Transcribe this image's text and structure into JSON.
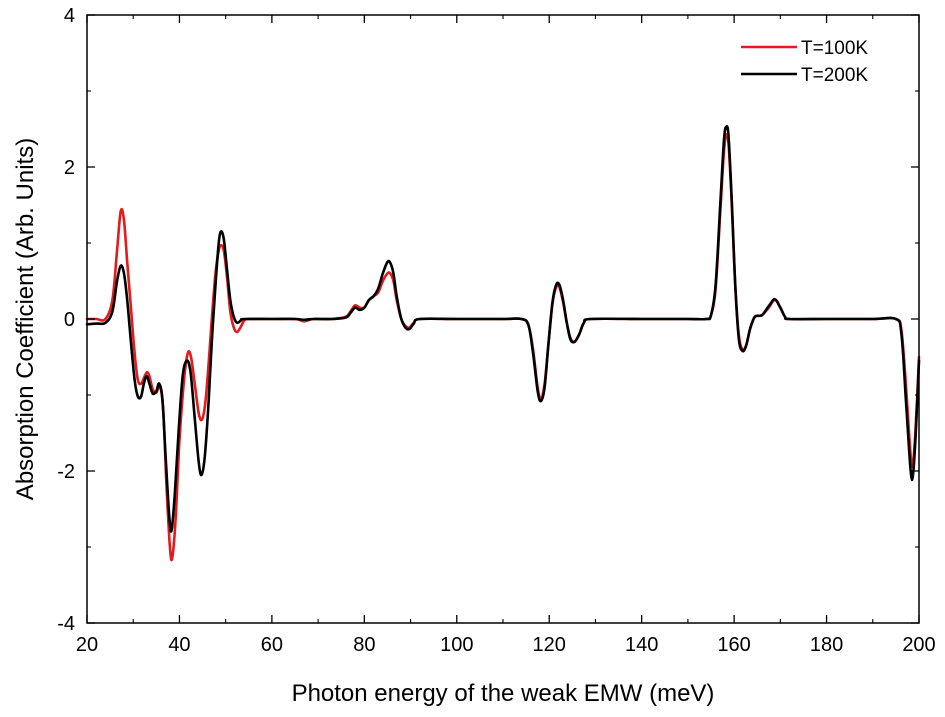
{
  "chart_data": {
    "type": "line",
    "xlabel": "Photon energy of the weak EMW (meV)",
    "ylabel": "Absorption Coefficient (Arb. Units)",
    "xlim": [
      20,
      200
    ],
    "ylim": [
      -4,
      4
    ],
    "x_ticks": [
      20,
      40,
      60,
      80,
      100,
      120,
      140,
      160,
      180,
      200
    ],
    "y_ticks": [
      -4,
      -2,
      0,
      2,
      4
    ],
    "grid": false,
    "legend_position": "top-right",
    "series": [
      {
        "name": "T=100K",
        "color": "#e41a1c",
        "points": [
          [
            20,
            0
          ],
          [
            22,
            0
          ],
          [
            24,
            0
          ],
          [
            25.5,
            0.25
          ],
          [
            26.5,
            0.9
          ],
          [
            27.3,
            1.42
          ],
          [
            28,
            1.3
          ],
          [
            28.7,
            0.75
          ],
          [
            29.5,
            0.15
          ],
          [
            30.3,
            -0.45
          ],
          [
            31,
            -0.8
          ],
          [
            31.7,
            -0.85
          ],
          [
            32.5,
            -0.75
          ],
          [
            33,
            -0.7
          ],
          [
            33.5,
            -0.75
          ],
          [
            34.2,
            -0.92
          ],
          [
            35,
            -0.97
          ],
          [
            35.8,
            -0.88
          ],
          [
            36.5,
            -1.2
          ],
          [
            37.2,
            -2.2
          ],
          [
            38,
            -3.05
          ],
          [
            38.5,
            -3.12
          ],
          [
            39.2,
            -2.6
          ],
          [
            40,
            -1.6
          ],
          [
            41,
            -0.8
          ],
          [
            41.8,
            -0.45
          ],
          [
            42.5,
            -0.5
          ],
          [
            43.3,
            -0.85
          ],
          [
            44.2,
            -1.25
          ],
          [
            44.9,
            -1.32
          ],
          [
            45.6,
            -1.1
          ],
          [
            46.3,
            -0.6
          ],
          [
            47,
            0
          ],
          [
            47.8,
            0.6
          ],
          [
            48.5,
            0.9
          ],
          [
            49,
            0.97
          ],
          [
            49.6,
            0.9
          ],
          [
            50.3,
            0.55
          ],
          [
            51,
            0.1
          ],
          [
            51.8,
            -0.12
          ],
          [
            52.5,
            -0.17
          ],
          [
            53.3,
            -0.1
          ],
          [
            54,
            -0.02
          ],
          [
            55,
            0
          ],
          [
            60,
            0
          ],
          [
            65,
            0
          ],
          [
            67,
            -0.03
          ],
          [
            69,
            0
          ],
          [
            73,
            0
          ],
          [
            76,
            0.03
          ],
          [
            77,
            0.1
          ],
          [
            78,
            0.18
          ],
          [
            79,
            0.15
          ],
          [
            80,
            0.15
          ],
          [
            81,
            0.25
          ],
          [
            82,
            0.3
          ],
          [
            83,
            0.35
          ],
          [
            84,
            0.5
          ],
          [
            85,
            0.6
          ],
          [
            85.6,
            0.6
          ],
          [
            86.3,
            0.5
          ],
          [
            87,
            0.25
          ],
          [
            88,
            0
          ],
          [
            89,
            -0.1
          ],
          [
            89.8,
            -0.11
          ],
          [
            90.7,
            -0.05
          ],
          [
            92,
            0
          ],
          [
            100,
            0
          ],
          [
            110,
            0
          ],
          [
            114,
            0
          ],
          [
            115.5,
            -0.08
          ],
          [
            116.5,
            -0.4
          ],
          [
            117.5,
            -0.9
          ],
          [
            118.2,
            -1.05
          ],
          [
            119,
            -0.85
          ],
          [
            119.8,
            -0.35
          ],
          [
            120.7,
            0.2
          ],
          [
            121.5,
            0.42
          ],
          [
            122.2,
            0.42
          ],
          [
            123,
            0.22
          ],
          [
            123.8,
            -0.05
          ],
          [
            124.6,
            -0.25
          ],
          [
            125.5,
            -0.3
          ],
          [
            126.5,
            -0.2
          ],
          [
            127.5,
            -0.05
          ],
          [
            129,
            0
          ],
          [
            140,
            0
          ],
          [
            150,
            0
          ],
          [
            154,
            0
          ],
          [
            155,
            0.05
          ],
          [
            156,
            0.4
          ],
          [
            157,
            1.4
          ],
          [
            157.8,
            2.2
          ],
          [
            158.3,
            2.42
          ],
          [
            158.8,
            2.3
          ],
          [
            159.5,
            1.5
          ],
          [
            160.2,
            0.5
          ],
          [
            161,
            -0.2
          ],
          [
            161.8,
            -0.4
          ],
          [
            162.6,
            -0.35
          ],
          [
            163.5,
            -0.12
          ],
          [
            164.5,
            0.03
          ],
          [
            166,
            0.05
          ],
          [
            167.5,
            0.15
          ],
          [
            168.8,
            0.25
          ],
          [
            170,
            0.15
          ],
          [
            171,
            0.03
          ],
          [
            172,
            0
          ],
          [
            180,
            0
          ],
          [
            190,
            0
          ],
          [
            195,
            0
          ],
          [
            196.2,
            -0.15
          ],
          [
            197.2,
            -0.9
          ],
          [
            198.2,
            -1.8
          ],
          [
            198.7,
            -1.9
          ],
          [
            199.3,
            -1.4
          ],
          [
            200,
            -0.5
          ]
        ]
      },
      {
        "name": "T=200K",
        "color": "#000000",
        "points": [
          [
            20,
            -0.07
          ],
          [
            22,
            -0.06
          ],
          [
            24,
            -0.05
          ],
          [
            25.5,
            0.1
          ],
          [
            26.5,
            0.5
          ],
          [
            27.3,
            0.7
          ],
          [
            28,
            0.6
          ],
          [
            28.7,
            0.25
          ],
          [
            29.5,
            -0.3
          ],
          [
            30.3,
            -0.8
          ],
          [
            31,
            -1.02
          ],
          [
            31.7,
            -1.02
          ],
          [
            32.3,
            -0.85
          ],
          [
            32.9,
            -0.75
          ],
          [
            33.5,
            -0.85
          ],
          [
            34.2,
            -0.98
          ],
          [
            35,
            -0.95
          ],
          [
            35.6,
            -0.85
          ],
          [
            36.3,
            -1.05
          ],
          [
            37,
            -1.8
          ],
          [
            37.8,
            -2.6
          ],
          [
            38.3,
            -2.78
          ],
          [
            39,
            -2.3
          ],
          [
            39.8,
            -1.5
          ],
          [
            40.7,
            -0.75
          ],
          [
            41.6,
            -0.55
          ],
          [
            42.4,
            -0.7
          ],
          [
            43.3,
            -1.3
          ],
          [
            44.2,
            -1.9
          ],
          [
            44.8,
            -2.05
          ],
          [
            45.5,
            -1.8
          ],
          [
            46.3,
            -1.1
          ],
          [
            47,
            -0.3
          ],
          [
            47.8,
            0.45
          ],
          [
            48.5,
            1
          ],
          [
            49,
            1.15
          ],
          [
            49.6,
            1.05
          ],
          [
            50.3,
            0.65
          ],
          [
            51,
            0.25
          ],
          [
            51.8,
            0.02
          ],
          [
            52.5,
            -0.05
          ],
          [
            53.3,
            -0.02
          ],
          [
            54,
            0
          ],
          [
            60,
            0
          ],
          [
            65,
            0
          ],
          [
            67,
            -0.01
          ],
          [
            69,
            0
          ],
          [
            73,
            0
          ],
          [
            76,
            0.02
          ],
          [
            77,
            0.08
          ],
          [
            78,
            0.15
          ],
          [
            79,
            0.12
          ],
          [
            80,
            0.15
          ],
          [
            81,
            0.25
          ],
          [
            82,
            0.3
          ],
          [
            83,
            0.4
          ],
          [
            84,
            0.6
          ],
          [
            85,
            0.75
          ],
          [
            85.6,
            0.74
          ],
          [
            86.3,
            0.6
          ],
          [
            87,
            0.3
          ],
          [
            88,
            0
          ],
          [
            89,
            -0.12
          ],
          [
            89.8,
            -0.13
          ],
          [
            90.7,
            -0.06
          ],
          [
            92,
            0
          ],
          [
            100,
            0
          ],
          [
            110,
            0
          ],
          [
            114,
            0
          ],
          [
            115.5,
            -0.08
          ],
          [
            116.5,
            -0.45
          ],
          [
            117.5,
            -0.95
          ],
          [
            118.2,
            -1.08
          ],
          [
            119,
            -0.9
          ],
          [
            119.8,
            -0.35
          ],
          [
            120.7,
            0.22
          ],
          [
            121.5,
            0.45
          ],
          [
            122.2,
            0.45
          ],
          [
            123,
            0.25
          ],
          [
            123.8,
            -0.05
          ],
          [
            124.6,
            -0.27
          ],
          [
            125.5,
            -0.3
          ],
          [
            126.5,
            -0.2
          ],
          [
            127.5,
            -0.05
          ],
          [
            129,
            0
          ],
          [
            140,
            0
          ],
          [
            150,
            0
          ],
          [
            154,
            0
          ],
          [
            155,
            0.05
          ],
          [
            156,
            0.45
          ],
          [
            157,
            1.5
          ],
          [
            157.8,
            2.35
          ],
          [
            158.3,
            2.53
          ],
          [
            158.8,
            2.4
          ],
          [
            159.5,
            1.55
          ],
          [
            160.2,
            0.5
          ],
          [
            161,
            -0.25
          ],
          [
            161.8,
            -0.42
          ],
          [
            162.6,
            -0.35
          ],
          [
            163.5,
            -0.12
          ],
          [
            164.5,
            0.03
          ],
          [
            166,
            0.05
          ],
          [
            167.5,
            0.17
          ],
          [
            168.8,
            0.26
          ],
          [
            170,
            0.15
          ],
          [
            171,
            0.03
          ],
          [
            172,
            0
          ],
          [
            180,
            0
          ],
          [
            190,
            0
          ],
          [
            195,
            0
          ],
          [
            196.2,
            -0.2
          ],
          [
            197.2,
            -1.1
          ],
          [
            198.2,
            -2
          ],
          [
            198.7,
            -2.05
          ],
          [
            199.3,
            -1.5
          ],
          [
            200,
            -0.55
          ]
        ]
      }
    ]
  }
}
